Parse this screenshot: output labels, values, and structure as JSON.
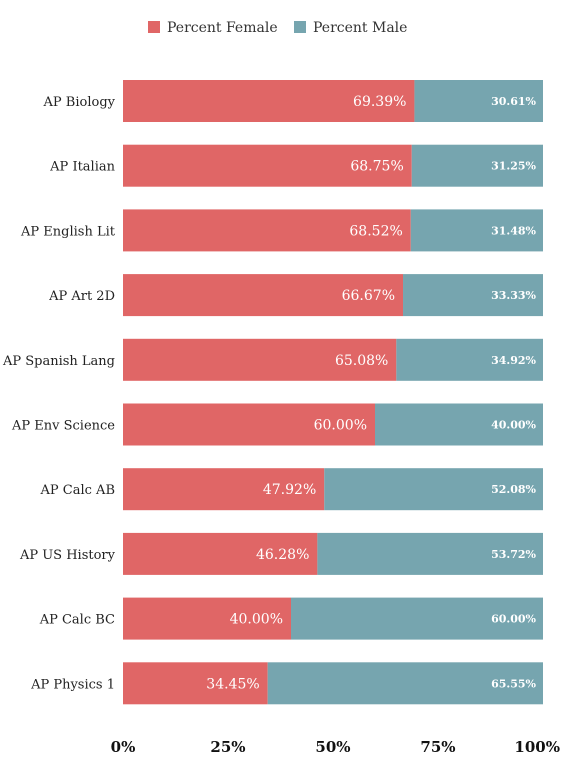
{
  "chart_data": {
    "type": "bar",
    "orientation": "horizontal",
    "stacked": true,
    "categories": [
      "AP Biology",
      "AP Italian",
      "AP English Lit",
      "AP Art 2D",
      "AP Spanish Lang",
      "AP Env Science",
      "AP Calc AB",
      "AP US History",
      "AP Calc BC",
      "AP Physics 1"
    ],
    "series": [
      {
        "name": "Percent Female",
        "color": "#e06666",
        "values": [
          69.39,
          68.75,
          68.52,
          66.67,
          65.08,
          60.0,
          47.92,
          46.28,
          40.0,
          34.45
        ],
        "labels": [
          "69.39%",
          "68.75%",
          "68.52%",
          "66.67%",
          "65.08%",
          "60.00%",
          "47.92%",
          "46.28%",
          "40.00%",
          "34.45%"
        ]
      },
      {
        "name": "Percent Male",
        "color": "#76a5af",
        "values": [
          30.61,
          31.25,
          31.48,
          33.33,
          34.92,
          40.0,
          52.08,
          53.72,
          60.0,
          65.55
        ],
        "labels": [
          "30.61%",
          "31.25%",
          "31.48%",
          "33.33%",
          "34.92%",
          "40.00%",
          "52.08%",
          "53.72%",
          "60.00%",
          "65.55%"
        ]
      }
    ],
    "x_ticks": [
      0,
      25,
      50,
      75,
      100
    ],
    "x_tick_labels": [
      "0%",
      "25%",
      "50%",
      "75%",
      "100%"
    ],
    "xlim": [
      0,
      100
    ],
    "legend_position": "top",
    "grid": false,
    "title": "",
    "xlabel": "",
    "ylabel": ""
  }
}
